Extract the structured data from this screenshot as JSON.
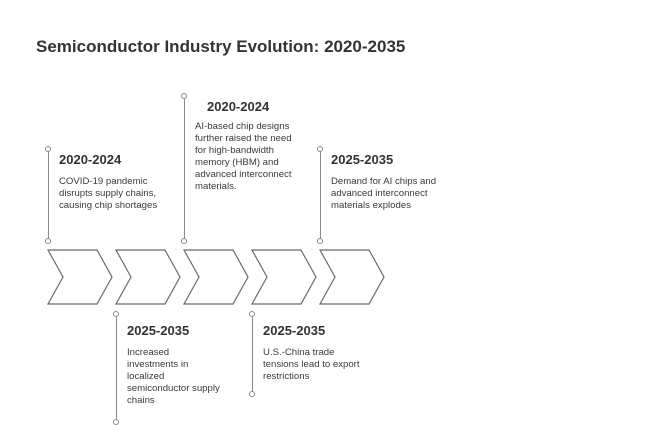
{
  "title": "Semiconductor Industry Evolution: 2020-2035",
  "stages": [
    {
      "year": "2020-2024",
      "text": "COVID-19 pandemic disrupts supply chains, causing chip shortages",
      "position": "top"
    },
    {
      "year": "2025-2035",
      "text": "Increased investments in localized semiconductor supply chains",
      "position": "bottom"
    },
    {
      "year": "2020-2024",
      "text": "AI-based chip designs further raised the need for high-bandwidth memory (HBM) and advanced interconnect materials.",
      "position": "top"
    },
    {
      "year": "2025-2035",
      "text": "U.S.-China trade tensions lead to export restrictions",
      "position": "bottom"
    },
    {
      "year": "2025-2035",
      "text": "Demand for AI chips and advanced interconnect materials explodes",
      "position": "top"
    }
  ],
  "colors": {
    "chevron_stroke": "#6b6b6b",
    "connector": "#8a8a8a",
    "heading": "#333333"
  }
}
